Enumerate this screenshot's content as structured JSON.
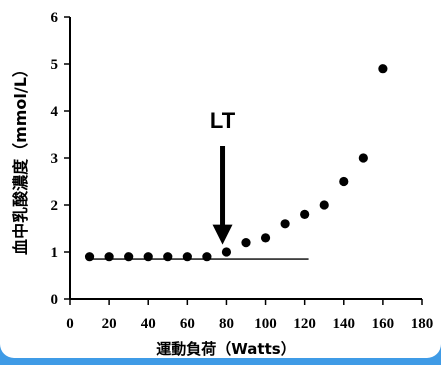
{
  "chart_data": {
    "type": "scatter",
    "title": "",
    "xlabel": "運動負荷（Watts）",
    "ylabel": "血中乳酸濃度（mmol/L）",
    "xlim": [
      0,
      180
    ],
    "ylim": [
      0,
      6
    ],
    "x_ticks": [
      "0",
      "20",
      "40",
      "60",
      "80",
      "100",
      "120",
      "140",
      "160",
      "180"
    ],
    "y_ticks": [
      "0",
      "1",
      "2",
      "3",
      "4",
      "5",
      "6"
    ],
    "grid": false,
    "series": [
      {
        "x": [
          10,
          20,
          30,
          40,
          50,
          60,
          70,
          80,
          90,
          100,
          110,
          120,
          130,
          140,
          150,
          160
        ],
        "y": [
          0.9,
          0.9,
          0.9,
          0.9,
          0.9,
          0.9,
          0.9,
          1.0,
          1.2,
          1.3,
          1.6,
          1.8,
          2.0,
          2.5,
          3.0,
          4.9
        ]
      }
    ],
    "baseline": {
      "y": 0.85,
      "x_start": 0,
      "x_end": 122
    },
    "annotation": {
      "text": "LT",
      "x": 78,
      "arrow_to_y": 1.2
    },
    "colors": {
      "marker": "#000000",
      "background_frame": "#3f9be6",
      "plot_bg": "#ffffff"
    }
  }
}
